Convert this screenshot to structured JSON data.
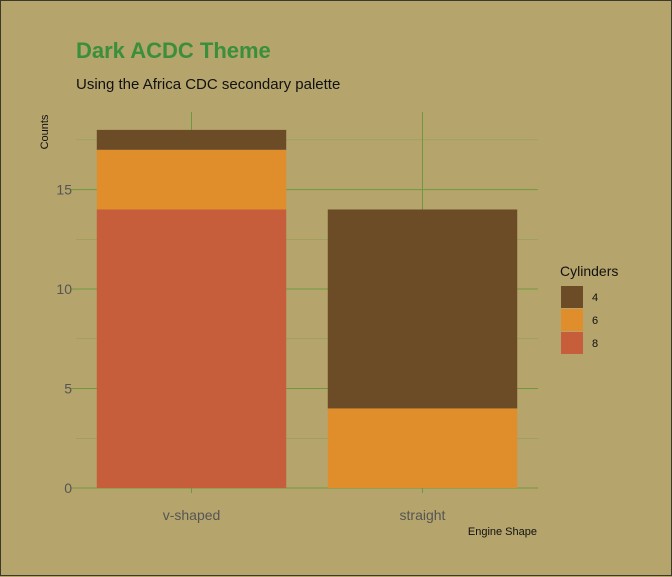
{
  "chart_data": {
    "type": "bar",
    "stacked": true,
    "title": "Dark ACDC Theme",
    "subtitle": "Using the Africa CDC secondary palette",
    "xlabel": "Engine Shape",
    "ylabel": "Counts",
    "categories": [
      "v-shaped",
      "straight"
    ],
    "series": [
      {
        "name": "8",
        "color": "#c65d3b",
        "values": [
          14,
          0
        ]
      },
      {
        "name": "6",
        "color": "#e08e2b",
        "values": [
          3,
          4
        ]
      },
      {
        "name": "4",
        "color": "#6b4c27",
        "values": [
          1,
          10
        ]
      }
    ],
    "ylim": [
      0,
      18.9
    ],
    "yticks": [
      0,
      5,
      10,
      15
    ],
    "grid": true,
    "legend": {
      "title": "Cylinders",
      "position": "right",
      "entries": [
        {
          "label": "4",
          "color": "#6b4c27"
        },
        {
          "label": "6",
          "color": "#e08e2b"
        },
        {
          "label": "8",
          "color": "#c65d3b"
        }
      ]
    },
    "colors": {
      "background": "#b5a46b",
      "grid": "#6e9a3c",
      "title": "#3a8f3a"
    }
  }
}
